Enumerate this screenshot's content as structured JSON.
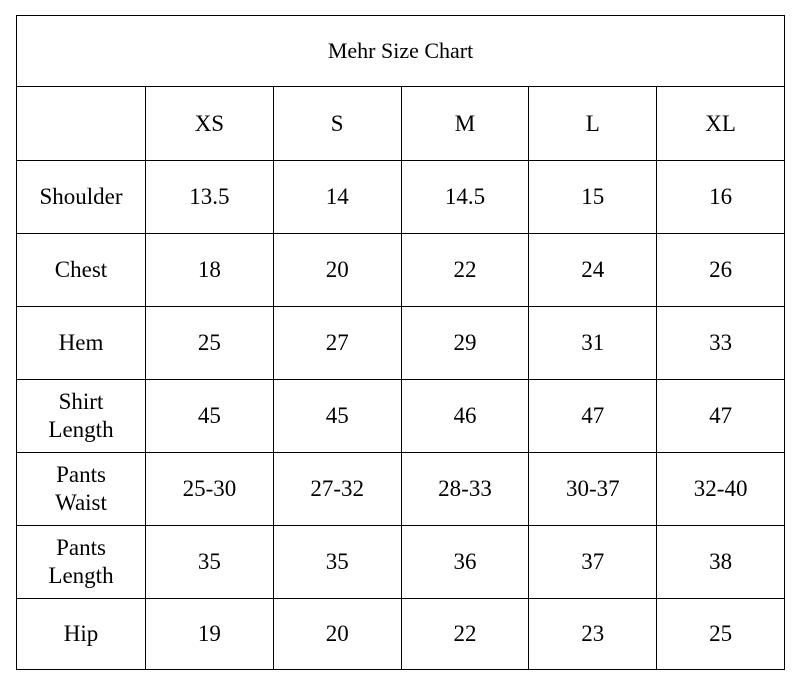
{
  "title": "Mehr Size Chart",
  "header_blank": "",
  "sizes": [
    "XS",
    "S",
    "M",
    "L",
    "XL"
  ],
  "rows": [
    {
      "label": "Shoulder",
      "values": [
        "13.5",
        "14",
        "14.5",
        "15",
        "16"
      ]
    },
    {
      "label": "Chest",
      "values": [
        "18",
        "20",
        "22",
        "24",
        "26"
      ]
    },
    {
      "label": "Hem",
      "values": [
        "25",
        "27",
        "29",
        "31",
        "33"
      ]
    },
    {
      "label": "Shirt Length",
      "values": [
        "45",
        "45",
        "46",
        "47",
        "47"
      ]
    },
    {
      "label": "Pants Waist",
      "values": [
        "25-30",
        "27-32",
        "28-33",
        "30-37",
        "32-40"
      ]
    },
    {
      "label": "Pants Length",
      "values": [
        "35",
        "35",
        "36",
        "37",
        "38"
      ]
    },
    {
      "label": "Hip",
      "values": [
        "19",
        "20",
        "22",
        "23",
        "25"
      ]
    }
  ]
}
